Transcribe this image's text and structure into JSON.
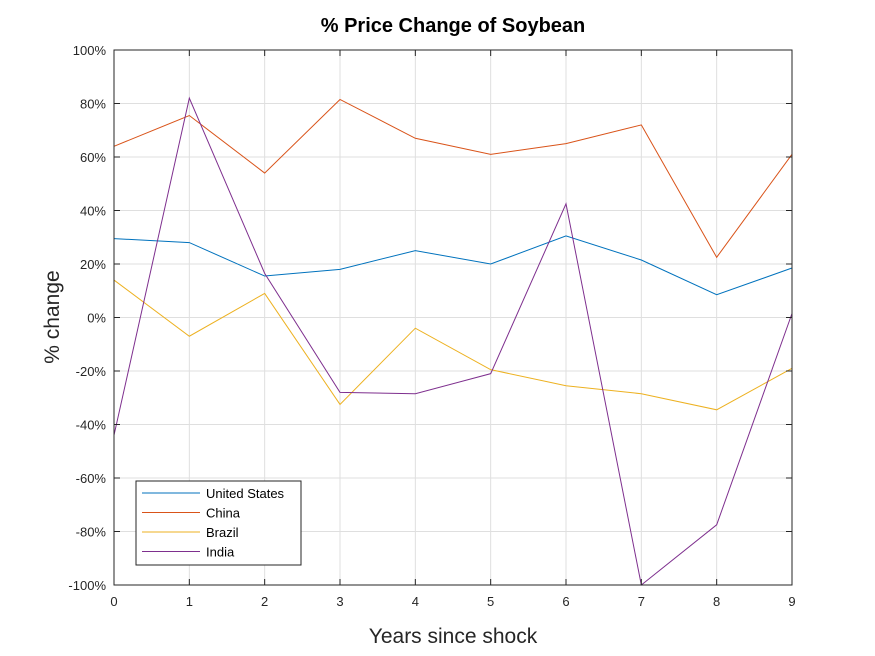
{
  "chart_data": {
    "type": "line",
    "title": "% Price Change of Soybean",
    "xlabel": "Years since shock",
    "ylabel": "% change",
    "xlim": [
      0,
      9
    ],
    "ylim": [
      -100,
      100
    ],
    "x": [
      0,
      1,
      2,
      3,
      4,
      5,
      6,
      7,
      8,
      9
    ],
    "xticks": [
      "0",
      "1",
      "2",
      "3",
      "4",
      "5",
      "6",
      "7",
      "8",
      "9"
    ],
    "yticks": [
      "-100%",
      "-80%",
      "-60%",
      "-40%",
      "-20%",
      "0%",
      "20%",
      "40%",
      "60%",
      "80%",
      "100%"
    ],
    "grid": true,
    "legend_position": "bottom-left",
    "series": [
      {
        "name": "United States",
        "color": "#0072BD",
        "values": [
          29.5,
          28,
          15.5,
          18,
          25,
          20,
          30.5,
          21.5,
          8.5,
          18.5
        ]
      },
      {
        "name": "China",
        "color": "#D95319",
        "values": [
          64,
          75.5,
          54,
          81.5,
          67,
          61,
          65,
          72,
          22.5,
          61
        ]
      },
      {
        "name": "Brazil",
        "color": "#EDB120",
        "values": [
          14,
          -7,
          9,
          -32.5,
          -4,
          -19.5,
          -25.5,
          -28.5,
          -34.5,
          -19
        ]
      },
      {
        "name": "India",
        "color": "#7E2F8E",
        "values": [
          -44,
          82,
          16.5,
          -28,
          -28.5,
          -21,
          42.5,
          -100,
          -77.5,
          1.5
        ]
      }
    ]
  }
}
